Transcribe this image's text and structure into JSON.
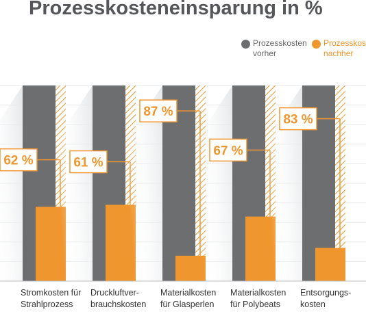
{
  "chart_data": {
    "type": "bar",
    "title": "Prozesskosteneinsparung in %",
    "categories": [
      "Stromkosten für Strahlprozess",
      "Druckluftver-brauchskosten",
      "Materialkosten für Glasperlen",
      "Materialkosten für Polybeats",
      "Entsorgungs-kosten"
    ],
    "series": [
      {
        "name": "Prozesskosten vorher",
        "color": "#6d6e70",
        "values": [
          100,
          100,
          100,
          100,
          100
        ]
      },
      {
        "name": "Prozesskost nachher",
        "color": "#f0962e",
        "values": [
          38,
          39,
          13,
          33,
          17
        ]
      }
    ],
    "annotations": [
      {
        "value": 62,
        "label": "62 %"
      },
      {
        "value": 61,
        "label": "61 %"
      },
      {
        "value": 87,
        "label": "87 %"
      },
      {
        "value": 67,
        "label": "67 %"
      },
      {
        "value": 83,
        "label": "83 %"
      }
    ],
    "ylim": [
      0,
      100
    ],
    "yticks": [
      0,
      10,
      20,
      30,
      40,
      50,
      60,
      70,
      80,
      90,
      100
    ],
    "grid": true
  }
}
